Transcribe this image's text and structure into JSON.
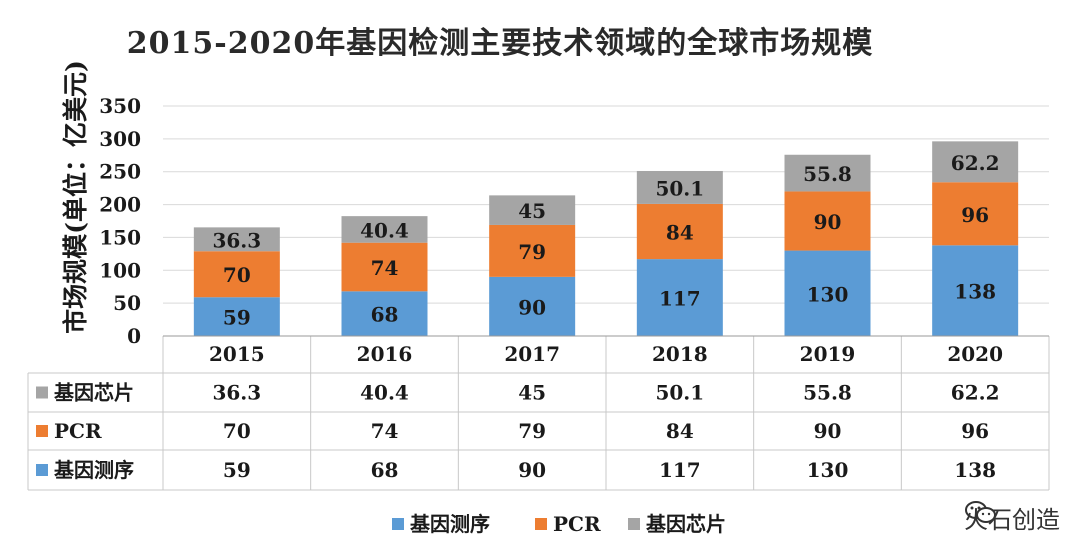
{
  "chart_data": {
    "type": "bar",
    "stacked": true,
    "title": "2015-2020年基因检测主要技术领域的全球市场规模",
    "ylabel": "市场规模(单位：亿美元)",
    "ylim": [
      0,
      350
    ],
    "yticks": [
      0,
      50,
      100,
      150,
      200,
      250,
      300,
      350
    ],
    "categories": [
      "2015",
      "2016",
      "2017",
      "2018",
      "2019",
      "2020"
    ],
    "series": [
      {
        "name": "基因测序",
        "color": "#5b9bd5",
        "values": [
          59,
          68,
          90,
          117,
          130,
          138
        ]
      },
      {
        "name": "PCR",
        "color": "#ed7d31",
        "values": [
          70,
          74,
          79,
          84,
          90,
          96
        ]
      },
      {
        "name": "基因芯片",
        "color": "#a5a5a5",
        "values": [
          36.3,
          40.4,
          45,
          50.1,
          55.8,
          62.2
        ]
      }
    ],
    "data_table": true,
    "legend": "bottom",
    "grid": true
  },
  "watermark": "火石创造"
}
